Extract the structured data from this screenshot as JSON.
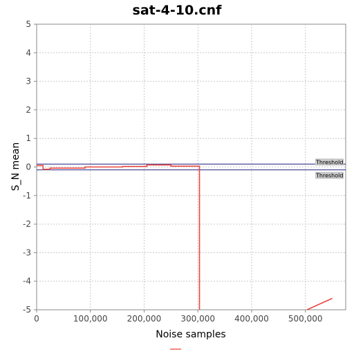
{
  "chart_data": {
    "type": "line",
    "title": "sat-4-10.cnf",
    "xlabel": "Noise samples",
    "ylabel": "S_N mean",
    "xlim": [
      0,
      575000
    ],
    "ylim": [
      -5,
      5
    ],
    "x_ticks": [
      0,
      100000,
      200000,
      300000,
      400000,
      500000
    ],
    "x_tick_labels": [
      "0",
      "100,000",
      "200,000",
      "300,000",
      "400,000",
      "500,000"
    ],
    "y_ticks": [
      -5,
      -4,
      -3,
      -2,
      -1,
      0,
      1,
      2,
      3,
      4,
      5
    ],
    "y_tick_labels": [
      "-5",
      "-4",
      "-3",
      "-2",
      "-1",
      "0",
      "1",
      "2",
      "3",
      "4",
      "5"
    ],
    "grid": true,
    "legend": "bottom",
    "series": [
      {
        "color": "#e8473f",
        "segments": [
          [
            [
              0,
              0.05
            ],
            [
              12000,
              0.05
            ],
            [
              12000,
              -0.08
            ],
            [
              25000,
              -0.08
            ],
            [
              25000,
              -0.04
            ],
            [
              90000,
              -0.04
            ],
            [
              90000,
              0.0
            ],
            [
              160000,
              0.0
            ],
            [
              160000,
              0.02
            ],
            [
              205000,
              0.02
            ],
            [
              205000,
              0.07
            ],
            [
              250000,
              0.07
            ],
            [
              250000,
              0.03
            ],
            [
              300000,
              0.03
            ],
            [
              303000,
              0.03
            ],
            [
              303000,
              -5.0
            ]
          ],
          [
            [
              503000,
              -5.0
            ],
            [
              550000,
              -4.6
            ]
          ]
        ]
      }
    ],
    "thresholds": [
      {
        "value": 0.1,
        "label": "Threshold",
        "color": "#4a4a9c"
      },
      {
        "value": -0.1,
        "label": "Threshold",
        "color": "#4a4a9c"
      }
    ]
  }
}
